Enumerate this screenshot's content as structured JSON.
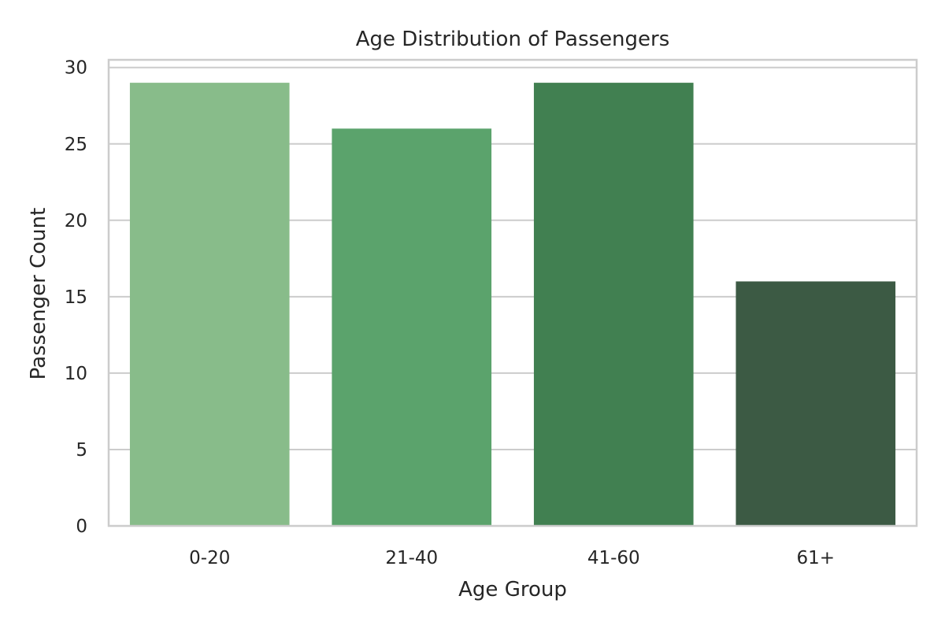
{
  "chart_data": {
    "type": "bar",
    "title": "Age Distribution of Passengers",
    "xlabel": "Age Group",
    "ylabel": "Passenger Count",
    "categories": [
      "0-20",
      "21-40",
      "41-60",
      "61+"
    ],
    "values": [
      29,
      26,
      29,
      16
    ],
    "ylim": [
      0,
      30.5
    ],
    "yticks": [
      0,
      5,
      10,
      15,
      20,
      25,
      30
    ],
    "grid": "horizontal",
    "colors": [
      "#88bc8a",
      "#5ba36c",
      "#418051",
      "#3c5a44"
    ],
    "background": "#ffffff",
    "grid_color": "#cccccc",
    "spine_color": "#cccccc"
  }
}
